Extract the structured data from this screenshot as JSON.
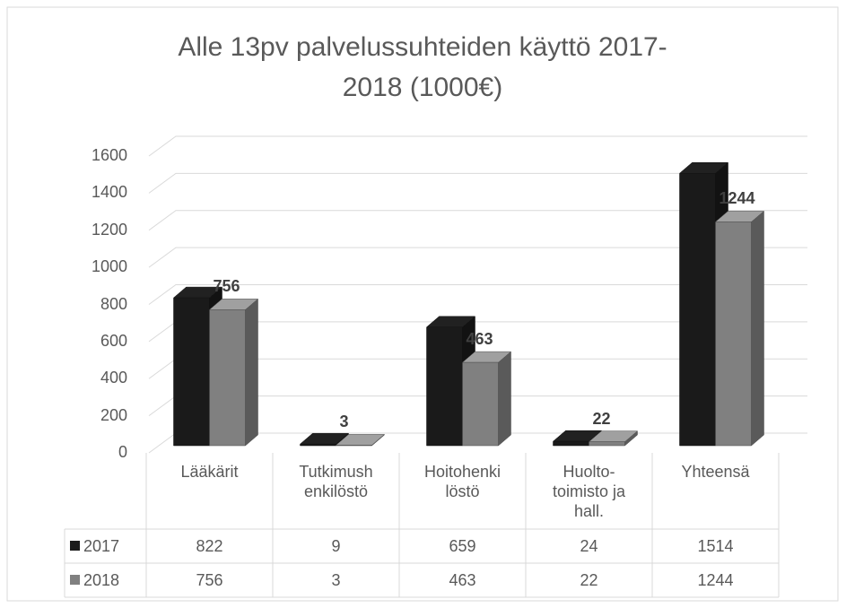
{
  "chart_data": {
    "type": "bar3d",
    "title": "Alle 13pv palvelussuhteiden käyttö 2017-2018 (1000€)",
    "categories": [
      "Lääkärit",
      "Tutkimushenkilöstö",
      "Hoitohenkilöstö",
      "Huolto-toimisto ja hall.",
      "Yhteensä"
    ],
    "series": [
      {
        "name": "2017",
        "color": "#1a1a1a",
        "values": [
          822,
          9,
          659,
          24,
          1514
        ]
      },
      {
        "name": "2018",
        "color": "#808080",
        "values": [
          756,
          3,
          463,
          22,
          1244
        ],
        "data_labels": true
      }
    ],
    "ylim": [
      0,
      1600
    ],
    "yticks": [
      0,
      200,
      400,
      600,
      800,
      1000,
      1200,
      1400,
      1600
    ],
    "grid": true,
    "data_table": true
  }
}
